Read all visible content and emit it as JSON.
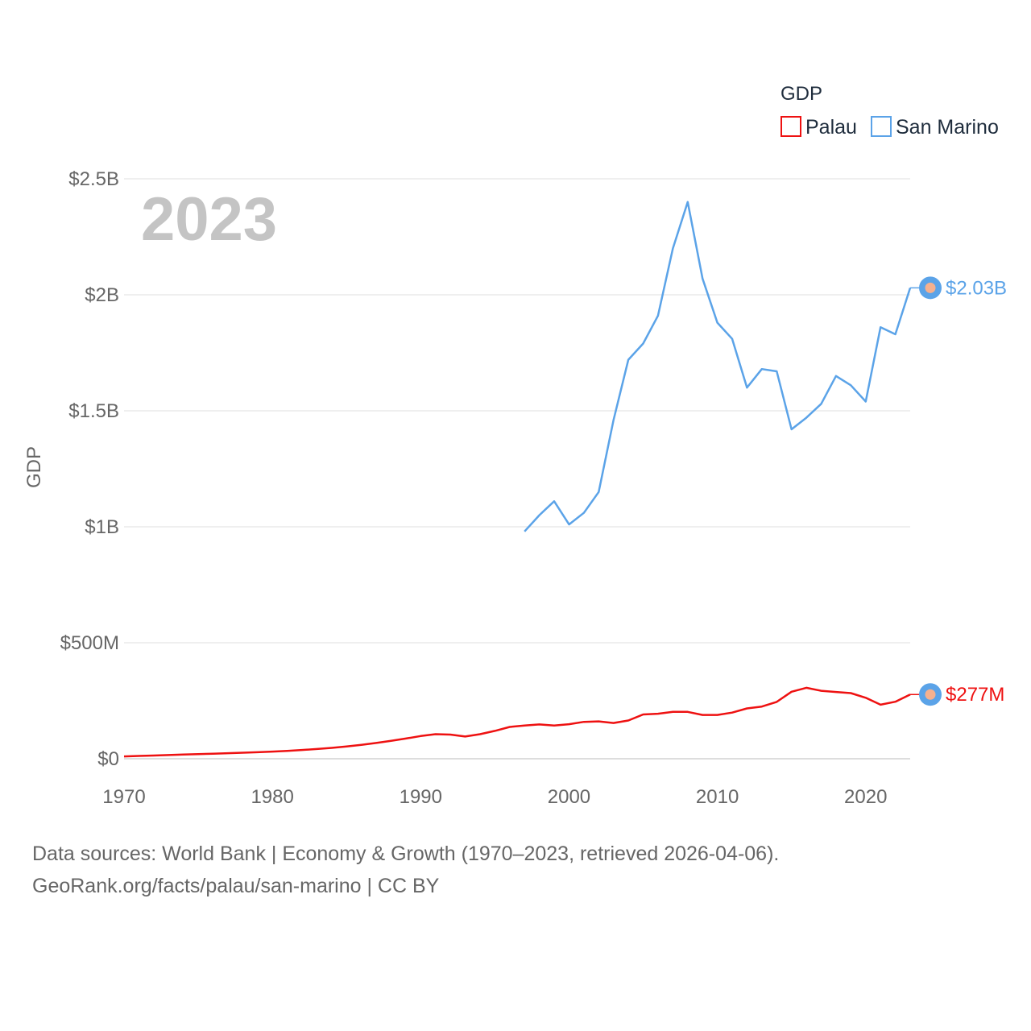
{
  "chart_data": {
    "type": "line",
    "year_label": "2023",
    "ylabel": "GDP",
    "legend": {
      "title": "GDP",
      "placement": "top-right"
    },
    "ylim": [
      0,
      2500000000
    ],
    "xlim": [
      1970,
      2023
    ],
    "y_ticks": [
      {
        "value": 0,
        "label": "$0"
      },
      {
        "value": 500000000,
        "label": "$500M"
      },
      {
        "value": 1000000000,
        "label": "$1B"
      },
      {
        "value": 1500000000,
        "label": "$1.5B"
      },
      {
        "value": 2000000000,
        "label": "$2B"
      },
      {
        "value": 2500000000,
        "label": "$2.5B"
      }
    ],
    "x_ticks": [
      {
        "value": 1970,
        "label": "1970"
      },
      {
        "value": 1980,
        "label": "1980"
      },
      {
        "value": 1990,
        "label": "1990"
      },
      {
        "value": 2000,
        "label": "2000"
      },
      {
        "value": 2010,
        "label": "2010"
      },
      {
        "value": 2020,
        "label": "2020"
      }
    ],
    "series": [
      {
        "name": "Palau",
        "color": "#ee1111",
        "end_label": "$277M",
        "points": [
          [
            1970,
            10
          ],
          [
            1971,
            12
          ],
          [
            1972,
            14
          ],
          [
            1973,
            16
          ],
          [
            1974,
            18
          ],
          [
            1975,
            20
          ],
          [
            1976,
            22
          ],
          [
            1977,
            24
          ],
          [
            1978,
            26
          ],
          [
            1979,
            28
          ],
          [
            1980,
            31
          ],
          [
            1981,
            34
          ],
          [
            1982,
            38
          ],
          [
            1983,
            42
          ],
          [
            1984,
            47
          ],
          [
            1985,
            53
          ],
          [
            1986,
            60
          ],
          [
            1987,
            68
          ],
          [
            1988,
            77
          ],
          [
            1989,
            87
          ],
          [
            1990,
            98
          ],
          [
            1991,
            106
          ],
          [
            1992,
            104
          ],
          [
            1993,
            96
          ],
          [
            1994,
            106
          ],
          [
            1995,
            120
          ],
          [
            1996,
            137
          ],
          [
            1997,
            143
          ],
          [
            1998,
            148
          ],
          [
            1999,
            143
          ],
          [
            2000,
            149
          ],
          [
            2001,
            159
          ],
          [
            2002,
            161
          ],
          [
            2003,
            154
          ],
          [
            2004,
            165
          ],
          [
            2005,
            191
          ],
          [
            2006,
            194
          ],
          [
            2007,
            202
          ],
          [
            2008,
            202
          ],
          [
            2009,
            189
          ],
          [
            2010,
            189
          ],
          [
            2011,
            199
          ],
          [
            2012,
            217
          ],
          [
            2013,
            225
          ],
          [
            2014,
            245
          ],
          [
            2015,
            289
          ],
          [
            2016,
            306
          ],
          [
            2017,
            293
          ],
          [
            2018,
            288
          ],
          [
            2019,
            283
          ],
          [
            2020,
            263
          ],
          [
            2021,
            233
          ],
          [
            2022,
            246
          ],
          [
            2023,
            277
          ]
        ]
      },
      {
        "name": "San Marino",
        "color": "#5ba3e8",
        "end_label": "$2.03B",
        "points": [
          [
            1997,
            980
          ],
          [
            1998,
            1050
          ],
          [
            1999,
            1110
          ],
          [
            2000,
            1010
          ],
          [
            2001,
            1060
          ],
          [
            2002,
            1150
          ],
          [
            2003,
            1460
          ],
          [
            2004,
            1720
          ],
          [
            2005,
            1790
          ],
          [
            2006,
            1910
          ],
          [
            2007,
            2200
          ],
          [
            2008,
            2400
          ],
          [
            2009,
            2070
          ],
          [
            2010,
            1880
          ],
          [
            2011,
            1810
          ],
          [
            2012,
            1600
          ],
          [
            2013,
            1680
          ],
          [
            2014,
            1670
          ],
          [
            2015,
            1420
          ],
          [
            2016,
            1470
          ],
          [
            2017,
            1530
          ],
          [
            2018,
            1650
          ],
          [
            2019,
            1610
          ],
          [
            2020,
            1540
          ],
          [
            2021,
            1860
          ],
          [
            2022,
            1830
          ],
          [
            2023,
            2030
          ]
        ]
      }
    ],
    "value_units": "millions USD"
  },
  "footer": {
    "line1": "Data sources: World Bank | Economy & Growth (1970–2023, retrieved 2026-04-06).",
    "line2": "GeoRank.org/facts/palau/san-marino | CC BY"
  }
}
